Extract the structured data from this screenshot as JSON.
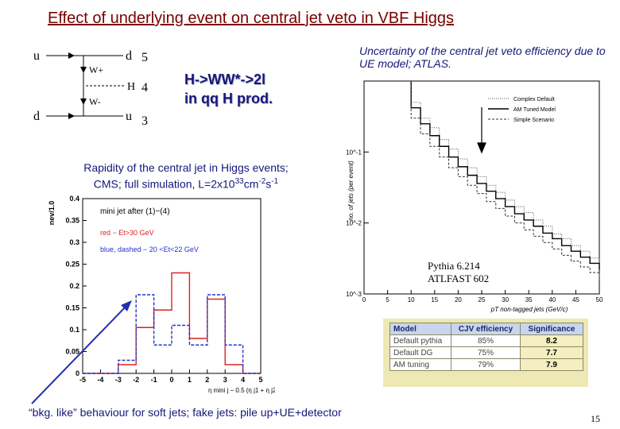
{
  "slide": {
    "title": "Effect of underlying event on central jet veto in VBF Higgs",
    "page_number": "15"
  },
  "feynman": {
    "labels": {
      "u_in": "u",
      "d_in": "d",
      "d_out": "d",
      "u_out": "u",
      "w_plus": "W+",
      "w_minus": "W-",
      "higgs": "H",
      "n5": "5",
      "n4": "4",
      "n3": "3"
    }
  },
  "process": {
    "line1": "H->WW*->2l",
    "line2": "in qq H prod."
  },
  "atlas": {
    "caption": "Uncertainty of the central jet veto efficiency due to UE model; ATLAS.",
    "pythia_line1": "Pythia 6.214",
    "pythia_line2": "ATLFAST 602"
  },
  "cms": {
    "caption_line1": "Rapidity of the central jet in Higgs events;",
    "caption_line2": "CMS; full simulation, L=2x10",
    "caption_exp1": "33",
    "caption_mid": "cm",
    "caption_exp2": "-2",
    "caption_end": "s",
    "caption_exp3": "-1"
  },
  "table": {
    "headers": [
      "Model",
      "CJV efficiency",
      "Significance"
    ],
    "rows": [
      [
        "Default pythia",
        "85%",
        "8.2"
      ],
      [
        "Default DG",
        "75%",
        "7.7"
      ],
      [
        "AM tuning",
        "79%",
        "7.9"
      ]
    ]
  },
  "bottom_note": "“bkg. like” behaviour for soft jets; fake jets: pile up+UE+detector",
  "chart_data": [
    {
      "type": "bar",
      "title": "",
      "xlabel": "η mini j − 0.5 (η j1 + η j2)",
      "ylabel": "nev/1.0",
      "xlim": [
        -5,
        5
      ],
      "ylim": [
        0,
        0.4
      ],
      "xticks": [
        "-5",
        "-4",
        "-3",
        "-2",
        "-1",
        "0",
        "1",
        "2",
        "3",
        "4",
        "5"
      ],
      "yticks": [
        "0",
        "0.05",
        "0.1",
        "0.15",
        "0.2",
        "0.25",
        "0.3",
        "0.35",
        "0.4"
      ],
      "bin_edges": [
        -5,
        -4,
        -3,
        -2,
        -1,
        0,
        1,
        2,
        3,
        4,
        5
      ],
      "annotations": [
        "mini jet after (1)−(4)",
        "red − Et>30 GeV",
        "blue, dashed − 20 <Et<22 GeV"
      ],
      "series": [
        {
          "name": "red − Et>30 GeV",
          "color": "#dd2222",
          "values": [
            0,
            0,
            0.02,
            0.105,
            0.145,
            0.23,
            0.08,
            0.17,
            0.02,
            0
          ]
        },
        {
          "name": "blue, dashed − 20 <Et<22 GeV",
          "color": "#2233cc",
          "values": [
            0,
            0,
            0.03,
            0.18,
            0.065,
            0.11,
            0.065,
            0.18,
            0.065,
            0
          ]
        }
      ]
    },
    {
      "type": "line",
      "title": "",
      "xlabel": "pT non-tagged jets (GeV/c)",
      "ylabel": "no. of jets (per event)",
      "yscale": "log",
      "xlim": [
        0,
        50
      ],
      "ylim": [
        0.001,
        1
      ],
      "xticks": [
        "0",
        "5",
        "10",
        "15",
        "20",
        "25",
        "30",
        "35",
        "40",
        "45",
        "50"
      ],
      "yticks": [
        "10^-1",
        "10^-2",
        "10^-3"
      ],
      "series": [
        {
          "name": "Complex Default",
          "color": "#555555",
          "x": [
            10,
            12,
            14,
            16,
            18,
            20,
            22,
            24,
            26,
            28,
            30,
            32,
            34,
            36,
            38,
            40,
            42,
            44,
            46,
            48,
            50
          ],
          "values": [
            0.5,
            0.3,
            0.22,
            0.15,
            0.11,
            0.08,
            0.06,
            0.045,
            0.034,
            0.027,
            0.021,
            0.017,
            0.014,
            0.011,
            0.009,
            0.007,
            0.006,
            0.0048,
            0.004,
            0.0032,
            0.0026
          ]
        },
        {
          "name": "AM Tuned Model",
          "color": "#000000",
          "x": [
            10,
            12,
            14,
            16,
            18,
            20,
            22,
            24,
            26,
            28,
            30,
            32,
            34,
            36,
            38,
            40,
            42,
            44,
            46,
            48,
            50
          ],
          "values": [
            0.42,
            0.25,
            0.17,
            0.12,
            0.085,
            0.062,
            0.047,
            0.036,
            0.028,
            0.022,
            0.017,
            0.0135,
            0.011,
            0.009,
            0.0072,
            0.006,
            0.0048,
            0.004,
            0.0033,
            0.0027,
            0.0022
          ]
        },
        {
          "name": "Simple Scenario",
          "color": "#333333",
          "x": [
            10,
            12,
            14,
            16,
            18,
            20,
            22,
            24,
            26,
            28,
            30,
            32,
            34,
            36,
            38,
            40,
            42,
            44,
            46,
            48,
            50
          ],
          "values": [
            0.3,
            0.18,
            0.12,
            0.085,
            0.06,
            0.045,
            0.034,
            0.026,
            0.02,
            0.016,
            0.0125,
            0.01,
            0.008,
            0.0065,
            0.0053,
            0.0043,
            0.0035,
            0.0029,
            0.0024,
            0.002,
            0.0016
          ]
        }
      ]
    }
  ]
}
